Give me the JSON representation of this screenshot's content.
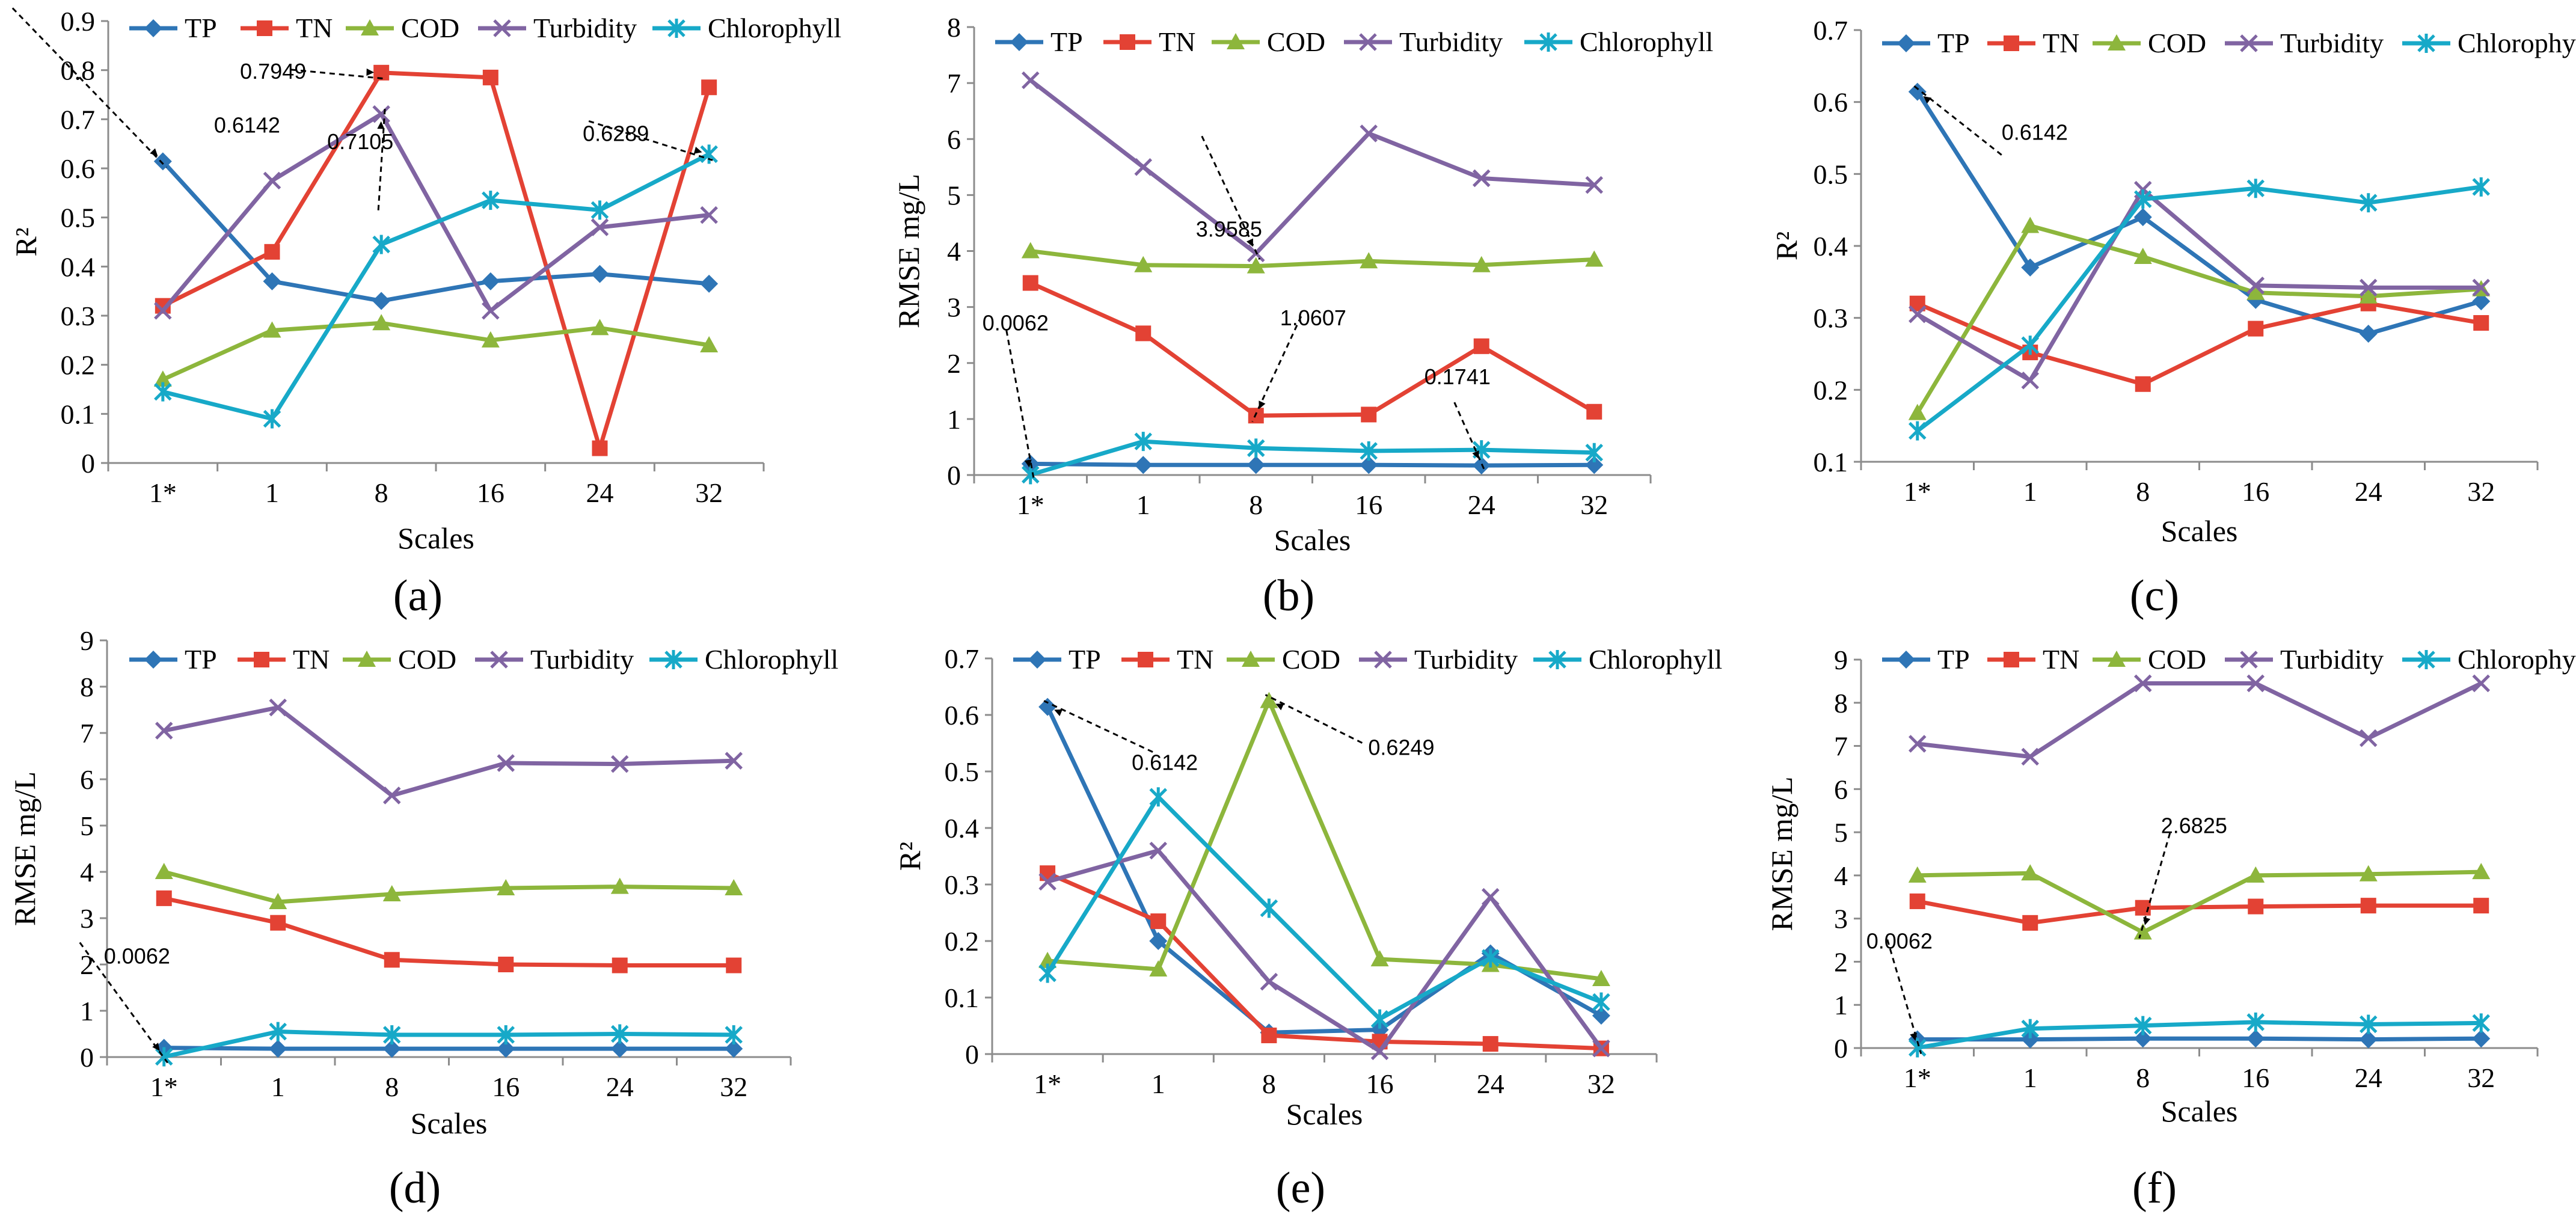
{
  "figure": {
    "colors": {
      "TP": "#2E75B6",
      "TN": "#E34234",
      "COD": "#8DB63C",
      "Turbidity": "#8064A2",
      "Chlorophyll": "#17A9C8"
    },
    "markers": {
      "TP": "diamond",
      "TN": "square",
      "COD": "triangle",
      "Turbidity": "x",
      "Chlorophyll": "asterisk"
    }
  },
  "chart_data": [
    {
      "type": "line",
      "panel_label": "(a)",
      "categories": [
        "1*",
        "1",
        "8",
        "16",
        "24",
        "32"
      ],
      "xlabel": "Scales",
      "ylabel": "R²",
      "ylim": [
        0,
        0.9
      ],
      "yticks": [
        0,
        0.1,
        0.2,
        0.3,
        0.4,
        0.5,
        0.6,
        0.7,
        0.8,
        0.9
      ],
      "ytick_labels": [
        "0",
        "0.1",
        "0.2",
        "0.3",
        "0.4",
        "0.5",
        "0.6",
        "0.7",
        "0.8",
        "0.9"
      ],
      "legend": [
        "TP",
        "TN",
        "COD",
        "Turbidity",
        "Chlorophyll"
      ],
      "series": [
        {
          "name": "TP",
          "values": [
            0.6142,
            0.37,
            0.33,
            0.37,
            0.385,
            0.365
          ]
        },
        {
          "name": "TN",
          "values": [
            0.32,
            0.43,
            0.7949,
            0.785,
            0.03,
            0.765
          ]
        },
        {
          "name": "COD",
          "values": [
            0.17,
            0.27,
            0.285,
            0.25,
            0.275,
            0.24
          ]
        },
        {
          "name": "Turbidity",
          "values": [
            0.31,
            0.575,
            0.7105,
            0.31,
            0.48,
            0.505
          ]
        },
        {
          "name": "Chlorophyll",
          "values": [
            0.145,
            0.09,
            0.445,
            0.535,
            0.515,
            0.6289
          ]
        }
      ],
      "annotations": [
        {
          "text": "0.6142",
          "series": "TP",
          "index": 0
        },
        {
          "text": "0.7949",
          "series": "TN",
          "index": 2
        },
        {
          "text": "0.7105",
          "series": "Turbidity",
          "index": 2
        },
        {
          "text": "0.6289",
          "series": "Chlorophyll",
          "index": 5
        }
      ]
    },
    {
      "type": "line",
      "panel_label": "(b)",
      "categories": [
        "1*",
        "1",
        "8",
        "16",
        "24",
        "32"
      ],
      "xlabel": "Scales",
      "ylabel": "RMSE mg/L",
      "ylim": [
        0,
        8
      ],
      "yticks": [
        0,
        1,
        2,
        3,
        4,
        5,
        6,
        7,
        8
      ],
      "ytick_labels": [
        "0",
        "1",
        "2",
        "3",
        "4",
        "5",
        "6",
        "7",
        "8"
      ],
      "legend": [
        "TP",
        "TN",
        "COD",
        "Turbidity",
        "Chlorophyll"
      ],
      "series": [
        {
          "name": "TP",
          "values": [
            0.2,
            0.18,
            0.18,
            0.18,
            0.17,
            0.18
          ]
        },
        {
          "name": "TN",
          "values": [
            3.43,
            2.53,
            1.0607,
            1.08,
            2.3,
            1.13
          ]
        },
        {
          "name": "COD",
          "values": [
            4.0,
            3.75,
            3.73,
            3.82,
            3.75,
            3.85
          ]
        },
        {
          "name": "Turbidity",
          "values": [
            7.05,
            5.5,
            3.9585,
            6.1,
            5.3,
            5.18
          ]
        },
        {
          "name": "Chlorophyll",
          "values": [
            0.0062,
            0.6,
            0.48,
            0.43,
            0.45,
            0.4
          ]
        }
      ],
      "annotations": [
        {
          "text": "3.9585",
          "series": "Turbidity",
          "index": 2
        },
        {
          "text": "1.0607",
          "series": "TN",
          "index": 2
        },
        {
          "text": "0.0062",
          "series": "Chlorophyll",
          "index": 0
        },
        {
          "text": "0.1741",
          "series": "TP",
          "index": 4
        }
      ]
    },
    {
      "type": "line",
      "panel_label": "(c)",
      "categories": [
        "1*",
        "1",
        "8",
        "16",
        "24",
        "32"
      ],
      "xlabel": "Scales",
      "ylabel": "R²",
      "ylim": [
        0.1,
        0.7
      ],
      "yticks": [
        0.1,
        0.2,
        0.3,
        0.4,
        0.5,
        0.6,
        0.7
      ],
      "ytick_labels": [
        "0.1",
        "0.2",
        "0.3",
        "0.4",
        "0.5",
        "0.6",
        "0.7"
      ],
      "legend": [
        "TP",
        "TN",
        "COD",
        "Turbidity",
        "Chlorophyll"
      ],
      "series": [
        {
          "name": "TP",
          "values": [
            0.6142,
            0.37,
            0.44,
            0.325,
            0.278,
            0.323
          ]
        },
        {
          "name": "TN",
          "values": [
            0.32,
            0.252,
            0.208,
            0.285,
            0.32,
            0.293
          ]
        },
        {
          "name": "COD",
          "values": [
            0.168,
            0.428,
            0.385,
            0.335,
            0.33,
            0.34
          ]
        },
        {
          "name": "Turbidity",
          "values": [
            0.305,
            0.213,
            0.478,
            0.345,
            0.342,
            0.342
          ]
        },
        {
          "name": "Chlorophyll",
          "values": [
            0.143,
            0.262,
            0.465,
            0.48,
            0.46,
            0.482
          ]
        }
      ],
      "annotations": [
        {
          "text": "0.6142",
          "series": "TP",
          "index": 0
        }
      ]
    },
    {
      "type": "line",
      "panel_label": "(d)",
      "categories": [
        "1*",
        "1",
        "8",
        "16",
        "24",
        "32"
      ],
      "xlabel": "Scales",
      "ylabel": "RMSE mg/L",
      "ylim": [
        0,
        9
      ],
      "yticks": [
        0,
        1,
        2,
        3,
        4,
        5,
        6,
        7,
        8,
        9
      ],
      "ytick_labels": [
        "0",
        "1",
        "2",
        "3",
        "4",
        "5",
        "6",
        "7",
        "8",
        "9"
      ],
      "legend": [
        "TP",
        "TN",
        "COD",
        "Turbidity",
        "Chlorophyll"
      ],
      "series": [
        {
          "name": "TP",
          "values": [
            0.2,
            0.18,
            0.18,
            0.18,
            0.18,
            0.18
          ]
        },
        {
          "name": "TN",
          "values": [
            3.43,
            2.9,
            2.1,
            2.0,
            1.98,
            1.98
          ]
        },
        {
          "name": "COD",
          "values": [
            4.0,
            3.35,
            3.52,
            3.65,
            3.68,
            3.65
          ]
        },
        {
          "name": "Turbidity",
          "values": [
            7.05,
            7.55,
            5.65,
            6.35,
            6.33,
            6.4
          ]
        },
        {
          "name": "Chlorophyll",
          "values": [
            0.0062,
            0.55,
            0.48,
            0.48,
            0.5,
            0.48
          ]
        }
      ],
      "annotations": [
        {
          "text": "0.0062",
          "series": "Chlorophyll",
          "index": 0
        }
      ]
    },
    {
      "type": "line",
      "panel_label": "(e)",
      "categories": [
        "1*",
        "1",
        "8",
        "16",
        "24",
        "32"
      ],
      "xlabel": "Scales",
      "ylabel": "R²",
      "ylim": [
        0,
        0.7
      ],
      "yticks": [
        0,
        0.1,
        0.2,
        0.3,
        0.4,
        0.5,
        0.6,
        0.7
      ],
      "ytick_labels": [
        "0",
        "0.1",
        "0.2",
        "0.3",
        "0.4",
        "0.5",
        "0.6",
        "0.7"
      ],
      "legend": [
        "TP",
        "TN",
        "COD",
        "Turbidity",
        "Chlorophyll"
      ],
      "series": [
        {
          "name": "TP",
          "values": [
            0.6142,
            0.2,
            0.038,
            0.043,
            0.178,
            0.068
          ]
        },
        {
          "name": "TN",
          "values": [
            0.32,
            0.235,
            0.033,
            0.022,
            0.018,
            0.01
          ]
        },
        {
          "name": "COD",
          "values": [
            0.165,
            0.15,
            0.6249,
            0.168,
            0.158,
            0.133
          ]
        },
        {
          "name": "Turbidity",
          "values": [
            0.305,
            0.36,
            0.128,
            0.005,
            0.278,
            0.01
          ]
        },
        {
          "name": "Chlorophyll",
          "values": [
            0.143,
            0.455,
            0.258,
            0.062,
            0.17,
            0.092
          ]
        }
      ],
      "annotations": [
        {
          "text": "0.6142",
          "series": "TP",
          "index": 0
        },
        {
          "text": "0.6249",
          "series": "COD",
          "index": 2
        }
      ]
    },
    {
      "type": "line",
      "panel_label": "(f)",
      "categories": [
        "1*",
        "1",
        "8",
        "16",
        "24",
        "32"
      ],
      "xlabel": "Scales",
      "ylabel": "RMSE mg/L",
      "ylim": [
        0,
        9
      ],
      "yticks": [
        0,
        1,
        2,
        3,
        4,
        5,
        6,
        7,
        8,
        9
      ],
      "ytick_labels": [
        "0",
        "1",
        "2",
        "3",
        "4",
        "5",
        "6",
        "7",
        "8",
        "9"
      ],
      "legend": [
        "TP",
        "TN",
        "COD",
        "Turbidity",
        "Chlorophyll"
      ],
      "series": [
        {
          "name": "TP",
          "values": [
            0.2,
            0.2,
            0.22,
            0.22,
            0.2,
            0.22
          ]
        },
        {
          "name": "TN",
          "values": [
            3.4,
            2.9,
            3.25,
            3.28,
            3.3,
            3.3
          ]
        },
        {
          "name": "COD",
          "values": [
            4.0,
            4.05,
            2.6825,
            4.0,
            4.03,
            4.08
          ]
        },
        {
          "name": "Turbidity",
          "values": [
            7.05,
            6.75,
            8.45,
            8.45,
            7.18,
            8.45
          ]
        },
        {
          "name": "Chlorophyll",
          "values": [
            0.0062,
            0.45,
            0.52,
            0.6,
            0.55,
            0.58
          ]
        }
      ],
      "annotations": [
        {
          "text": "2.6825",
          "series": "COD",
          "index": 2
        },
        {
          "text": "0.0062",
          "series": "Chlorophyll",
          "index": 0
        }
      ]
    }
  ]
}
